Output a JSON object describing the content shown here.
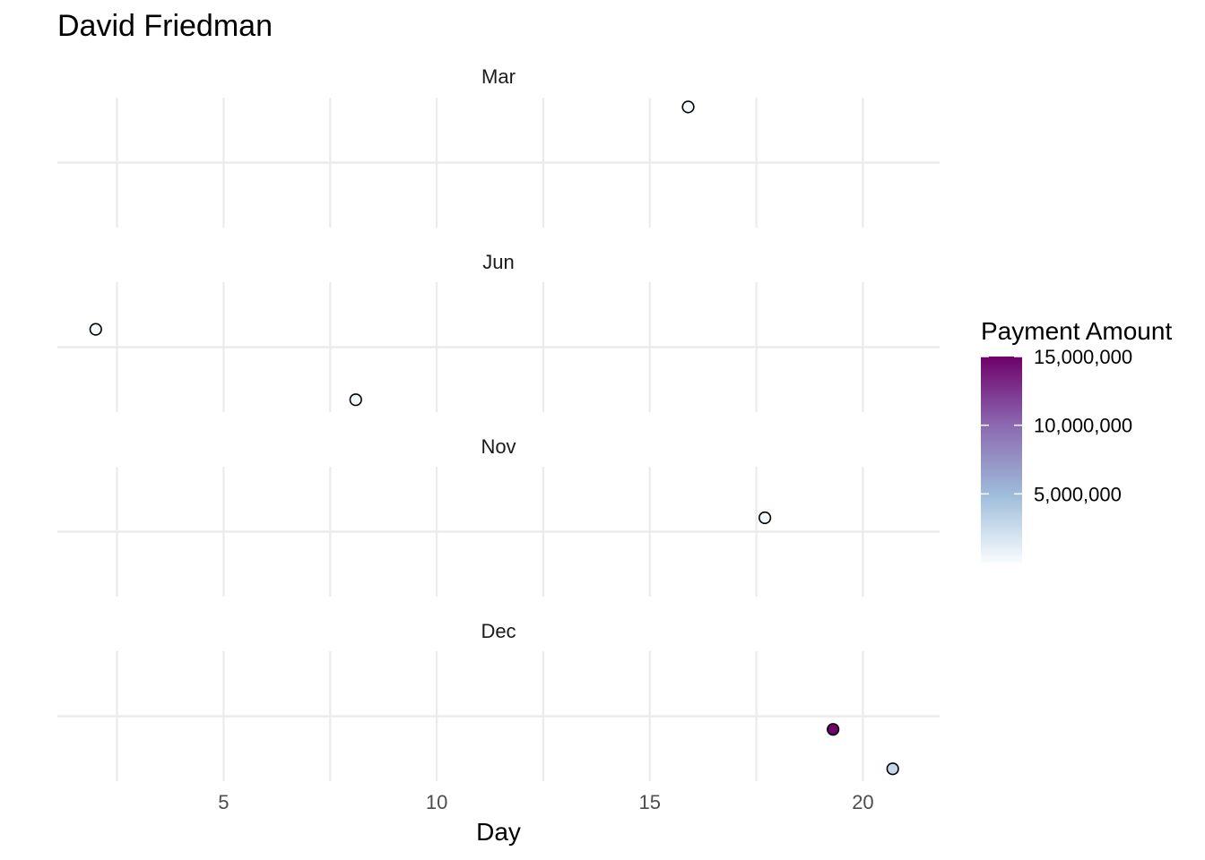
{
  "chart_data": {
    "type": "scatter",
    "title": "David Friedman",
    "xlabel": "Day",
    "ylabel": "",
    "xlim": [
      1.1,
      21.8
    ],
    "x_ticks": [
      5,
      10,
      15,
      20
    ],
    "x_tick_labels": [
      "5",
      "10",
      "15",
      "20"
    ],
    "facets": [
      {
        "label": "Mar",
        "points": [
          {
            "day": 15.9,
            "jitter": 0.72,
            "amount": 150000
          }
        ]
      },
      {
        "label": "Jun",
        "points": [
          {
            "day": 2.0,
            "jitter": 0.23,
            "amount": 120000
          },
          {
            "day": 8.1,
            "jitter": -0.68,
            "amount": 150000
          }
        ]
      },
      {
        "label": "Nov",
        "points": [
          {
            "day": 17.7,
            "jitter": 0.18,
            "amount": 200000
          }
        ]
      },
      {
        "label": "Dec",
        "points": [
          {
            "day": 19.3,
            "jitter": -0.17,
            "amount": 16000000
          },
          {
            "day": 20.7,
            "jitter": -0.68,
            "amount": 2800000
          }
        ]
      }
    ],
    "grid": true,
    "legend": {
      "title": "Payment Amount",
      "position": "right",
      "min": 0,
      "max": 15000000,
      "ticks": [
        5000000,
        10000000,
        15000000
      ],
      "tick_labels": [
        "5,000,000",
        "10,000,000",
        "15,000,000"
      ],
      "colors": [
        "#f7fcfd",
        "#9ebcda",
        "#8c6bb1",
        "#6e016b"
      ]
    }
  }
}
